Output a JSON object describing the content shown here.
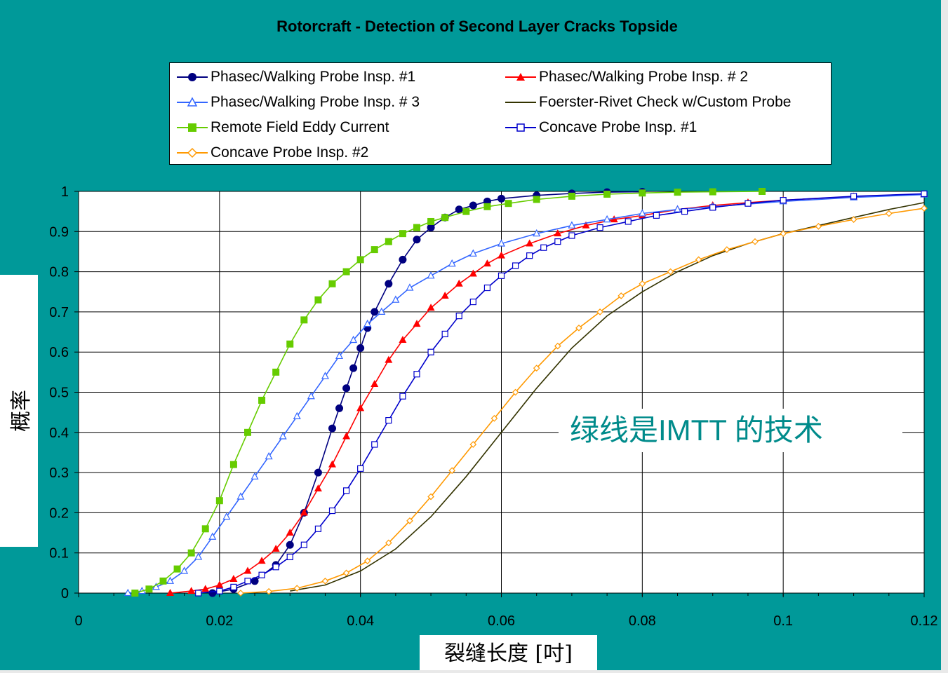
{
  "chart_data": {
    "type": "line",
    "title": "Rotorcraft - Detection of Second Layer Cracks Topside",
    "xlabel": "裂缝长度 [吋]",
    "ylabel": "概率",
    "xlim": [
      0,
      0.12
    ],
    "ylim": [
      0,
      1
    ],
    "x_ticks": [
      "0",
      "0.02",
      "0.04",
      "0.06",
      "0.08",
      "0.1",
      "0.12"
    ],
    "y_ticks": [
      "0",
      "0.1",
      "0.2",
      "0.3",
      "0.4",
      "0.5",
      "0.6",
      "0.7",
      "0.8",
      "0.9",
      "1"
    ],
    "grid": true,
    "legend_position": "top",
    "annotation": "绿线是IMTT 的技术",
    "series": [
      {
        "name": "Phasec/Walking Probe Insp. #1",
        "color": "#000080",
        "marker": "circle",
        "x": [
          0.019,
          0.022,
          0.025,
          0.028,
          0.03,
          0.032,
          0.034,
          0.036,
          0.037,
          0.038,
          0.039,
          0.04,
          0.041,
          0.042,
          0.044,
          0.046,
          0.048,
          0.05,
          0.052,
          0.054,
          0.056,
          0.058,
          0.06,
          0.065,
          0.07,
          0.075,
          0.08
        ],
        "y": [
          0.0,
          0.01,
          0.03,
          0.07,
          0.12,
          0.2,
          0.3,
          0.41,
          0.46,
          0.51,
          0.56,
          0.61,
          0.66,
          0.7,
          0.77,
          0.83,
          0.88,
          0.91,
          0.935,
          0.955,
          0.965,
          0.975,
          0.982,
          0.99,
          0.995,
          0.998,
          0.999
        ]
      },
      {
        "name": "Phasec/Walking Probe Insp. # 2",
        "color": "#ff0000",
        "marker": "triangle",
        "x": [
          0.013,
          0.016,
          0.018,
          0.02,
          0.022,
          0.024,
          0.026,
          0.028,
          0.03,
          0.032,
          0.034,
          0.036,
          0.038,
          0.04,
          0.042,
          0.044,
          0.046,
          0.048,
          0.05,
          0.052,
          0.054,
          0.056,
          0.058,
          0.06,
          0.064,
          0.068,
          0.072,
          0.076,
          0.08,
          0.085,
          0.09,
          0.095,
          0.1,
          0.11,
          0.12
        ],
        "y": [
          0.0,
          0.005,
          0.01,
          0.02,
          0.035,
          0.055,
          0.08,
          0.11,
          0.15,
          0.2,
          0.26,
          0.32,
          0.39,
          0.46,
          0.52,
          0.58,
          0.63,
          0.67,
          0.71,
          0.74,
          0.77,
          0.795,
          0.82,
          0.84,
          0.87,
          0.895,
          0.915,
          0.93,
          0.94,
          0.955,
          0.965,
          0.972,
          0.978,
          0.987,
          0.993
        ]
      },
      {
        "name": "Phasec/Walking Probe Insp. # 3",
        "color": "#3366ff",
        "marker": "triangle-open",
        "x": [
          0.007,
          0.009,
          0.011,
          0.013,
          0.015,
          0.017,
          0.019,
          0.021,
          0.023,
          0.025,
          0.027,
          0.029,
          0.031,
          0.033,
          0.035,
          0.037,
          0.039,
          0.041,
          0.043,
          0.045,
          0.047,
          0.05,
          0.053,
          0.056,
          0.06,
          0.065,
          0.07,
          0.075,
          0.08,
          0.085,
          0.09,
          0.1,
          0.11,
          0.12
        ],
        "y": [
          0.0,
          0.005,
          0.015,
          0.03,
          0.055,
          0.09,
          0.14,
          0.19,
          0.24,
          0.29,
          0.34,
          0.39,
          0.44,
          0.49,
          0.54,
          0.59,
          0.63,
          0.67,
          0.7,
          0.73,
          0.76,
          0.79,
          0.82,
          0.845,
          0.87,
          0.895,
          0.915,
          0.93,
          0.945,
          0.955,
          0.962,
          0.975,
          0.985,
          0.992
        ]
      },
      {
        "name": "Foerster-Rivet Check w/Custom Probe",
        "color": "#333300",
        "marker": "none",
        "x": [
          0.03,
          0.035,
          0.04,
          0.045,
          0.05,
          0.055,
          0.06,
          0.065,
          0.07,
          0.075,
          0.08,
          0.085,
          0.09,
          0.095,
          0.1,
          0.105,
          0.11,
          0.115,
          0.12
        ],
        "y": [
          0.005,
          0.02,
          0.055,
          0.11,
          0.19,
          0.29,
          0.4,
          0.51,
          0.61,
          0.69,
          0.75,
          0.8,
          0.84,
          0.87,
          0.895,
          0.915,
          0.935,
          0.955,
          0.972
        ]
      },
      {
        "name": "Remote Field Eddy Current",
        "color": "#66cc00",
        "marker": "square",
        "x": [
          0.008,
          0.01,
          0.012,
          0.014,
          0.016,
          0.018,
          0.02,
          0.022,
          0.024,
          0.026,
          0.028,
          0.03,
          0.032,
          0.034,
          0.036,
          0.038,
          0.04,
          0.042,
          0.044,
          0.046,
          0.048,
          0.05,
          0.052,
          0.055,
          0.058,
          0.061,
          0.065,
          0.07,
          0.075,
          0.08,
          0.085,
          0.09,
          0.097
        ],
        "y": [
          0.0,
          0.01,
          0.03,
          0.06,
          0.1,
          0.16,
          0.23,
          0.32,
          0.4,
          0.48,
          0.55,
          0.62,
          0.68,
          0.73,
          0.77,
          0.8,
          0.83,
          0.855,
          0.875,
          0.895,
          0.91,
          0.925,
          0.935,
          0.95,
          0.962,
          0.97,
          0.98,
          0.988,
          0.993,
          0.996,
          0.998,
          0.999,
          1.0
        ]
      },
      {
        "name": "Concave Probe Insp. #1",
        "color": "#0000cc",
        "marker": "square-open",
        "x": [
          0.017,
          0.02,
          0.022,
          0.024,
          0.026,
          0.028,
          0.03,
          0.032,
          0.034,
          0.036,
          0.038,
          0.04,
          0.042,
          0.044,
          0.046,
          0.048,
          0.05,
          0.052,
          0.054,
          0.056,
          0.058,
          0.06,
          0.062,
          0.064,
          0.066,
          0.068,
          0.07,
          0.074,
          0.078,
          0.082,
          0.086,
          0.09,
          0.095,
          0.1,
          0.11,
          0.12
        ],
        "y": [
          0.0,
          0.005,
          0.015,
          0.03,
          0.045,
          0.065,
          0.09,
          0.12,
          0.16,
          0.205,
          0.255,
          0.31,
          0.37,
          0.43,
          0.49,
          0.545,
          0.6,
          0.645,
          0.69,
          0.725,
          0.76,
          0.79,
          0.815,
          0.84,
          0.86,
          0.875,
          0.89,
          0.91,
          0.925,
          0.94,
          0.95,
          0.96,
          0.97,
          0.978,
          0.988,
          0.994
        ]
      },
      {
        "name": "Concave Probe Insp. #2",
        "color": "#ff9900",
        "marker": "diamond-open",
        "x": [
          0.023,
          0.027,
          0.031,
          0.035,
          0.038,
          0.041,
          0.044,
          0.047,
          0.05,
          0.053,
          0.056,
          0.059,
          0.062,
          0.065,
          0.068,
          0.071,
          0.074,
          0.077,
          0.08,
          0.084,
          0.088,
          0.092,
          0.096,
          0.1,
          0.105,
          0.11,
          0.115,
          0.12
        ],
        "y": [
          0.0,
          0.004,
          0.012,
          0.03,
          0.05,
          0.08,
          0.125,
          0.18,
          0.24,
          0.305,
          0.37,
          0.435,
          0.5,
          0.56,
          0.615,
          0.66,
          0.7,
          0.74,
          0.77,
          0.8,
          0.83,
          0.855,
          0.875,
          0.895,
          0.913,
          0.93,
          0.945,
          0.958
        ]
      }
    ]
  }
}
